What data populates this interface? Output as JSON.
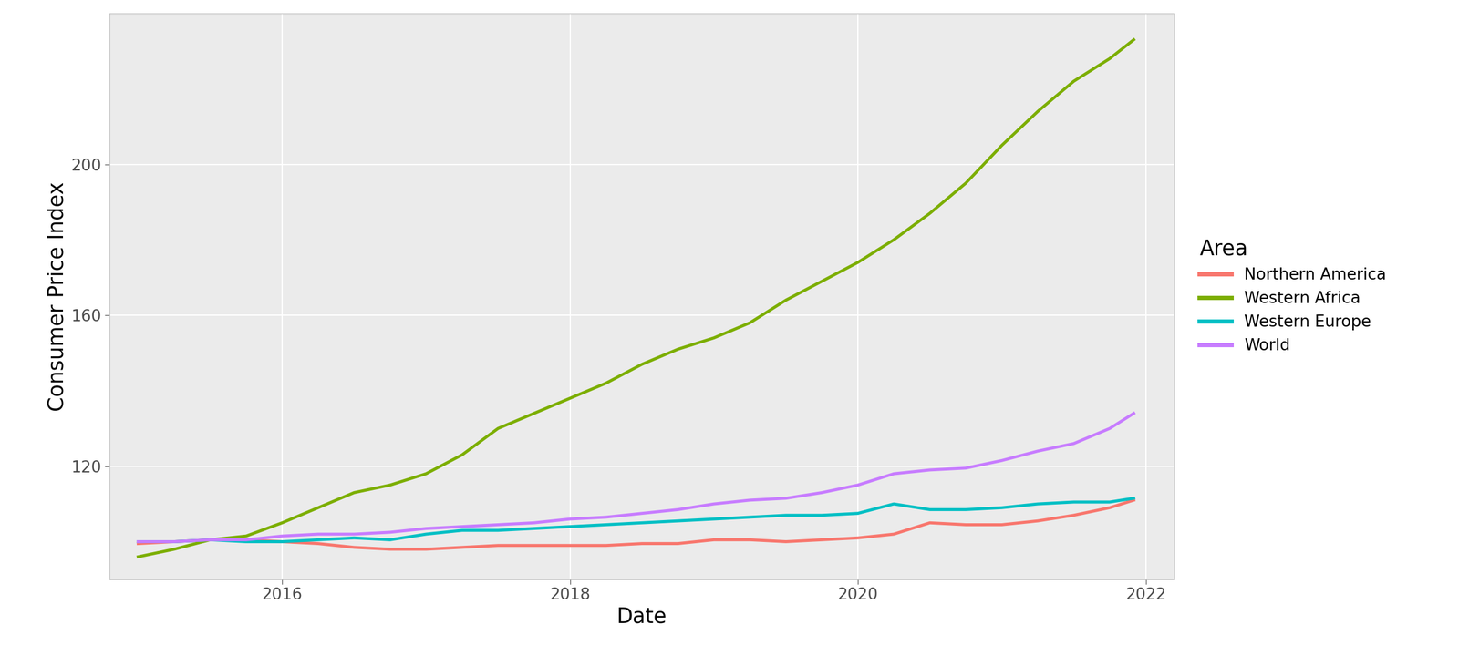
{
  "chart_data": {
    "type": "line",
    "x_label": "Date",
    "y_label": "Consumer Price Index",
    "legend_title": "Area",
    "legend": "right",
    "grid": true,
    "x": [
      2015.0,
      2015.25,
      2015.5,
      2015.75,
      2016.0,
      2016.25,
      2016.5,
      2016.75,
      2017.0,
      2017.25,
      2017.5,
      2017.75,
      2018.0,
      2018.25,
      2018.5,
      2018.75,
      2019.0,
      2019.25,
      2019.5,
      2019.75,
      2020.0,
      2020.25,
      2020.5,
      2020.75,
      2021.0,
      2021.25,
      2021.5,
      2021.75,
      2021.917
    ],
    "xlim": [
      2014.8,
      2022.2
    ],
    "xticks": [
      2016,
      2018,
      2020,
      2022
    ],
    "ylim": [
      90,
      240
    ],
    "yticks": [
      120,
      160,
      200
    ],
    "series": [
      {
        "name": "Northern America",
        "color": "#F8766D",
        "values": [
          99.5,
          100,
          100.5,
          100.5,
          100,
          99.5,
          98.5,
          98,
          98,
          98.5,
          99,
          99,
          99,
          99,
          99.5,
          99.5,
          100.5,
          100.5,
          100,
          100.5,
          101,
          102,
          105,
          104.5,
          104.5,
          105.5,
          107,
          109,
          111
        ]
      },
      {
        "name": "Western Africa",
        "color": "#7CAE00",
        "values": [
          96,
          98,
          100.5,
          101.5,
          105,
          109,
          113,
          115,
          118,
          123,
          130,
          134,
          138,
          142,
          147,
          151,
          154,
          158,
          164,
          169,
          174,
          180,
          187,
          195,
          205,
          214,
          222,
          228,
          233
        ]
      },
      {
        "name": "Western Europe",
        "color": "#00BFC4",
        "values": [
          100,
          100,
          100.5,
          100,
          100,
          100.5,
          101,
          100.5,
          102,
          103,
          103,
          103.5,
          104,
          104.5,
          105,
          105.5,
          106,
          106.5,
          107,
          107,
          107.5,
          110,
          108.5,
          108.5,
          109,
          110,
          110.5,
          110.5,
          111.5
        ]
      },
      {
        "name": "World",
        "color": "#C77CFF",
        "values": [
          100,
          100,
          100.5,
          100.5,
          101.5,
          102,
          102,
          102.5,
          103.5,
          104,
          104.5,
          105,
          106,
          106.5,
          107.5,
          108.5,
          110,
          111,
          111.5,
          113,
          115,
          118,
          119,
          119.5,
          121.5,
          124,
          126,
          130,
          134
        ]
      }
    ]
  }
}
